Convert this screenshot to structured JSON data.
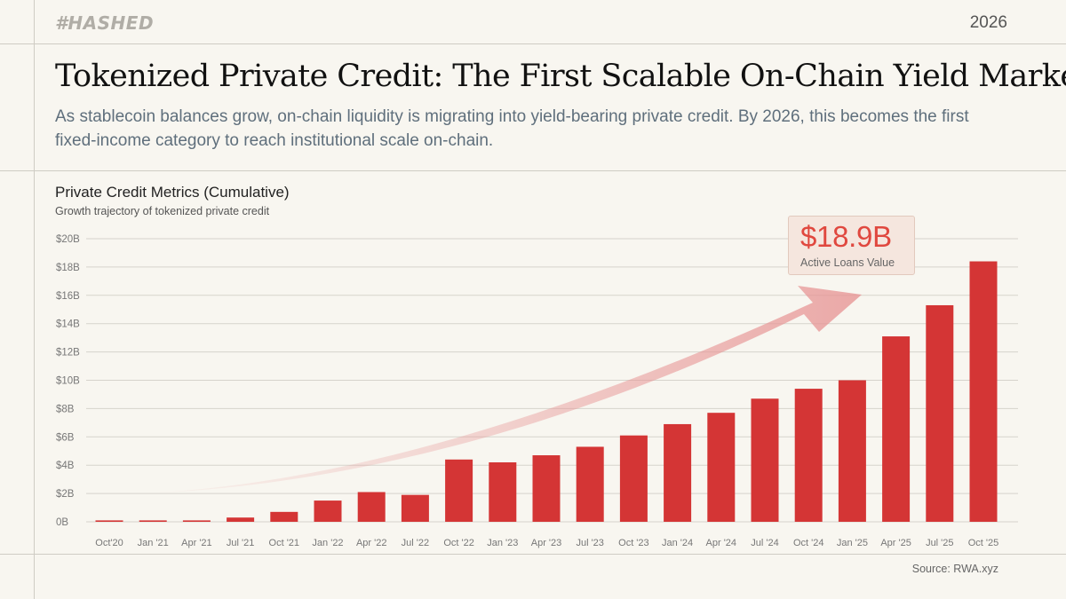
{
  "header": {
    "logo": "#HASHED",
    "year": "2026"
  },
  "title": "Tokenized Private Credit: The First Scalable On-Chain Yield Market",
  "subtitle": "As stablecoin balances grow, on-chain liquidity is migrating into yield-bearing private credit. By 2026, this becomes the first fixed-income category to reach institutional scale on-chain.",
  "callout": {
    "value": "$18.9B",
    "label": "Active Loans Value"
  },
  "source": "Source: RWA.xyz",
  "colors": {
    "bar": "#d43535",
    "accent": "#e0483f",
    "arrow": "#e79595",
    "grid": "#d6d3cc",
    "background": "#f8f6f0"
  },
  "chart_data": {
    "type": "bar",
    "title": "Private Credit Metrics (Cumulative)",
    "subtitle": "Growth trajectory of tokenized private credit",
    "categories": [
      "Oct'20",
      "Jan '21",
      "Apr '21",
      "Jul '21",
      "Oct '21",
      "Jan '22",
      "Apr '22",
      "Jul '22",
      "Oct '22",
      "Jan '23",
      "Apr '23",
      "Jul '23",
      "Oct '23",
      "Jan '24",
      "Apr '24",
      "Jul '24",
      "Oct '24",
      "Jan '25",
      "Apr '25",
      "Jul '25",
      "Oct '25"
    ],
    "values": [
      0.1,
      0.1,
      0.1,
      0.3,
      0.7,
      1.5,
      2.1,
      1.9,
      4.4,
      4.2,
      4.7,
      5.3,
      6.1,
      6.9,
      7.7,
      8.7,
      9.4,
      10.0,
      13.1,
      15.3,
      18.4
    ],
    "yticks": [
      "0B",
      "$2B",
      "$4B",
      "$6B",
      "$8B",
      "$10B",
      "$12B",
      "$14B",
      "$16B",
      "$18B",
      "$20B"
    ],
    "ylim": [
      0,
      20
    ],
    "xlabel": "",
    "ylabel": "",
    "series_name": "Active Loans Value"
  }
}
